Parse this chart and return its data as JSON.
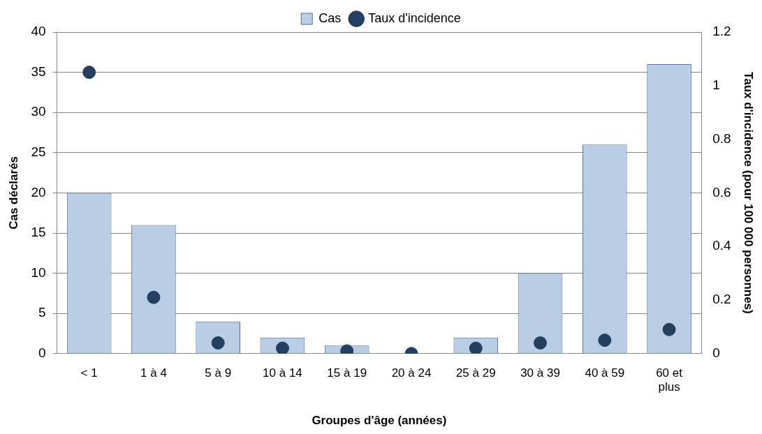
{
  "chart_data": {
    "type": "bar",
    "xlabel": "Groupes d'âge (années)",
    "ylabel": "Cas déclarés",
    "y2label": "Taux d'incidence (pour 100 000 personnes)",
    "categories": [
      "< 1",
      "1 à 4",
      "5 à 9",
      "10 à 14",
      "15 à 19",
      "20 à 24",
      "25 à 29",
      "30 à 39",
      "40 à 59",
      "60 et plus"
    ],
    "series": [
      {
        "name": "Cas",
        "color": "#b9cde5",
        "values": [
          20,
          16,
          4,
          2,
          1,
          0,
          2,
          10,
          26,
          36
        ]
      },
      {
        "name": "Taux d'incidence",
        "type": "scatter",
        "axis": "y2",
        "color": "#243f60",
        "values": [
          1.05,
          0.21,
          0.04,
          0.02,
          0.01,
          0,
          0.02,
          0.04,
          0.05,
          0.09
        ]
      }
    ],
    "ylim": [
      0,
      40
    ],
    "yticks": [
      0,
      5,
      10,
      15,
      20,
      25,
      30,
      35,
      40
    ],
    "y2lim": [
      0,
      1.2
    ],
    "y2ticks": [
      0,
      0.2,
      0.4,
      0.6,
      0.8,
      1,
      1.2
    ],
    "grid": "y",
    "legend": "top",
    "marker": "circle"
  }
}
